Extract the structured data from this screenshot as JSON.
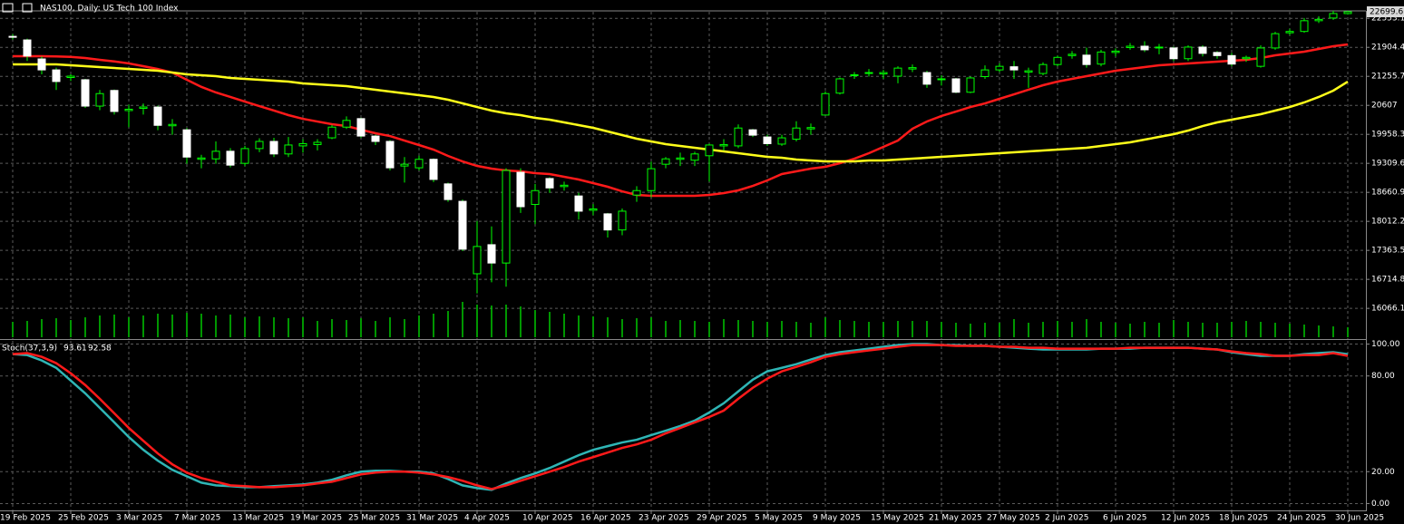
{
  "chart_data": [
    {
      "type": "candlestick",
      "title": "NAS100, Daily:  US Tech 100 Index",
      "categories": [
        "19 Feb 2025",
        null,
        null,
        null,
        "25 Feb 2025",
        null,
        null,
        null,
        "3 Mar 2025",
        null,
        null,
        null,
        "7 Mar 2025",
        null,
        null,
        null,
        "13 Mar 2025",
        null,
        null,
        null,
        "19 Mar 2025",
        null,
        null,
        null,
        "25 Mar 2025",
        null,
        null,
        null,
        "31 Mar 2025",
        null,
        null,
        null,
        "4 Apr 2025",
        null,
        null,
        null,
        "10 Apr 2025",
        null,
        null,
        null,
        "16 Apr 2025",
        null,
        null,
        null,
        "23 Apr 2025",
        null,
        null,
        null,
        "29 Apr 2025",
        null,
        null,
        null,
        "5 May 2025",
        null,
        null,
        null,
        "9 May 2025",
        null,
        null,
        null,
        "15 May 2025",
        null,
        null,
        null,
        "21 May 2025",
        null,
        null,
        null,
        "27 May 2025",
        null,
        null,
        null,
        "2 Jun 2025",
        null,
        null,
        null,
        "6 Jun 2025",
        null,
        null,
        null,
        "12 Jun 2025",
        null,
        null,
        null,
        "18 Jun 2025",
        null,
        null,
        null,
        "24 Jun 2025",
        null,
        null,
        null,
        "30 Jun 2025"
      ],
      "open": [
        22150,
        22070,
        21645,
        21400,
        21230,
        21180,
        20590,
        20940,
        20490,
        20540,
        20570,
        20150,
        20060,
        19400,
        19410,
        19580,
        19310,
        19640,
        19800,
        19520,
        19700,
        19730,
        19880,
        20120,
        20310,
        19920,
        19800,
        19250,
        19210,
        19400,
        18850,
        18460,
        16840,
        17490,
        17080,
        19110,
        18390,
        18970,
        18790,
        18580,
        18260,
        18180,
        17820,
        18600,
        18700,
        19290,
        19400,
        19380,
        19480,
        19700,
        19700,
        20060,
        19900,
        19740,
        19850,
        20080,
        20390,
        20880,
        21270,
        21320,
        21310,
        21260,
        21420,
        21340,
        21180,
        21200,
        20900,
        21250,
        21400,
        21470,
        21350,
        21320,
        21520,
        21720,
        21730,
        21530,
        21790,
        21900,
        21930,
        21890,
        21890,
        21650,
        21910,
        21790,
        21720,
        21650,
        21480,
        21890,
        22230,
        22260,
        22500,
        22560,
        22660
      ],
      "high": [
        22200,
        22100,
        21700,
        21450,
        21300,
        21200,
        20950,
        20960,
        20620,
        20650,
        20600,
        20300,
        20100,
        19500,
        19800,
        19650,
        19700,
        19870,
        19880,
        19900,
        19850,
        19850,
        20170,
        20360,
        20330,
        19950,
        19830,
        19450,
        19480,
        19420,
        18880,
        18500,
        18020,
        17900,
        19200,
        19200,
        18850,
        19000,
        18900,
        18650,
        18400,
        18200,
        18300,
        18800,
        19350,
        19450,
        19550,
        19570,
        19750,
        19850,
        20180,
        20080,
        19950,
        19950,
        20250,
        20200,
        20920,
        21230,
        21350,
        21420,
        21400,
        21480,
        21520,
        21380,
        21280,
        21220,
        21250,
        21500,
        21550,
        21600,
        21450,
        21570,
        21720,
        21820,
        21900,
        21850,
        21880,
        22000,
        22040,
        21980,
        21920,
        21950,
        21950,
        21820,
        21780,
        21720,
        21950,
        22250,
        22320,
        22560,
        22600,
        22720,
        22720
      ],
      "low": [
        22080,
        21600,
        21300,
        20950,
        21150,
        20550,
        20500,
        20400,
        20120,
        20400,
        20050,
        19950,
        19300,
        19200,
        19300,
        19220,
        19250,
        19560,
        19450,
        19450,
        19550,
        19600,
        19850,
        20080,
        19880,
        19720,
        19150,
        18880,
        19150,
        18890,
        18450,
        17350,
        16400,
        16650,
        16550,
        18200,
        17950,
        18650,
        18700,
        18050,
        18150,
        17650,
        17700,
        18450,
        18550,
        19200,
        19250,
        19250,
        18900,
        19600,
        19650,
        19900,
        19700,
        19700,
        19800,
        19950,
        20380,
        20850,
        21200,
        21250,
        21200,
        21100,
        21350,
        21000,
        21050,
        20880,
        20880,
        21200,
        21350,
        21200,
        21000,
        21280,
        21480,
        21650,
        21450,
        21480,
        21700,
        21850,
        21800,
        21750,
        21600,
        21600,
        21700,
        21650,
        21480,
        21580,
        21450,
        21850,
        22180,
        22230,
        22450,
        22520,
        22640
      ],
      "close": [
        22130,
        21710,
        21400,
        21140,
        21260,
        20590,
        20870,
        20470,
        20520,
        20570,
        20160,
        20180,
        19450,
        19430,
        19580,
        19270,
        19640,
        19800,
        19520,
        19720,
        19750,
        19780,
        20120,
        20270,
        19920,
        19800,
        19210,
        19290,
        19400,
        18950,
        18500,
        17390,
        17450,
        17080,
        19150,
        18340,
        18700,
        18760,
        18820,
        18240,
        18290,
        17820,
        18240,
        18700,
        19190,
        19410,
        19430,
        19520,
        19720,
        19730,
        20100,
        19940,
        19750,
        19880,
        20100,
        20110,
        20870,
        21200,
        21290,
        21340,
        21340,
        21440,
        21450,
        21080,
        21200,
        20900,
        21220,
        21400,
        21480,
        21400,
        21380,
        21520,
        21680,
        21750,
        21520,
        21800,
        21820,
        21930,
        21850,
        21910,
        21650,
        21910,
        21770,
        21720,
        21530,
        21680,
        21890,
        22210,
        22260,
        22500,
        22530,
        22660,
        22699.6
      ],
      "up_color": "#00ff00",
      "down_color": "#ffffff",
      "series": [
        {
          "color": "#ff1a1a",
          "values": [
            21706,
            21706,
            21706,
            21700,
            21690,
            21665,
            21625,
            21590,
            21545,
            21483,
            21420,
            21341,
            21180,
            21020,
            20895,
            20794,
            20692,
            20590,
            20490,
            20388,
            20306,
            20245,
            20185,
            20145,
            20063,
            19982,
            19921,
            19820,
            19719,
            19617,
            19475,
            19353,
            19252,
            19191,
            19150,
            19130,
            19090,
            19070,
            19009,
            18948,
            18867,
            18786,
            18684,
            18603,
            18583,
            18583,
            18583,
            18583,
            18603,
            18644,
            18705,
            18806,
            18928,
            19070,
            19130,
            19191,
            19232,
            19313,
            19414,
            19536,
            19678,
            19820,
            20084,
            20246,
            20368,
            20469,
            20570,
            20651,
            20753,
            20854,
            20956,
            21057,
            21138,
            21199,
            21260,
            21320,
            21381,
            21422,
            21463,
            21503,
            21523,
            21544,
            21564,
            21584,
            21605,
            21625,
            21666,
            21726,
            21767,
            21807,
            21868,
            21929,
            21970
          ]
        },
        {
          "color": "#ffff1a",
          "values": [
            21523,
            21523,
            21523,
            21523,
            21503,
            21483,
            21462,
            21442,
            21422,
            21402,
            21381,
            21341,
            21300,
            21280,
            21260,
            21219,
            21199,
            21179,
            21158,
            21138,
            21098,
            21077,
            21057,
            21037,
            20996,
            20956,
            20915,
            20875,
            20834,
            20794,
            20733,
            20652,
            20570,
            20489,
            20428,
            20388,
            20327,
            20287,
            20226,
            20165,
            20104,
            20023,
            19942,
            19861,
            19800,
            19739,
            19698,
            19658,
            19617,
            19577,
            19536,
            19496,
            19455,
            19435,
            19394,
            19374,
            19354,
            19354,
            19354,
            19374,
            19374,
            19394,
            19414,
            19435,
            19455,
            19475,
            19496,
            19516,
            19536,
            19556,
            19577,
            19597,
            19617,
            19637,
            19658,
            19698,
            19739,
            19779,
            19840,
            19901,
            19962,
            20043,
            20144,
            20226,
            20287,
            20347,
            20408,
            20489,
            20570,
            20672,
            20794,
            20936,
            21138
          ]
        }
      ],
      "volume": {
        "color": "#00c800",
        "values": [
          17,
          18,
          20,
          21,
          19,
          22,
          24,
          25,
          22,
          24,
          26,
          25,
          27,
          26,
          24,
          25,
          22,
          23,
          22,
          21,
          22,
          18,
          20,
          19,
          21,
          18,
          22,
          20,
          24,
          26,
          29,
          39,
          36,
          35,
          36,
          34,
          30,
          28,
          26,
          24,
          23,
          22,
          20,
          21,
          22,
          18,
          19,
          18,
          17,
          20,
          19,
          18,
          17,
          18,
          17,
          16,
          22,
          19,
          18,
          17,
          17,
          18,
          18,
          18,
          17,
          16,
          15,
          16,
          16,
          20,
          16,
          17,
          18,
          17,
          20,
          17,
          16,
          15,
          17,
          16,
          19,
          17,
          16,
          16,
          17,
          18,
          17,
          16,
          15,
          14,
          13,
          12,
          11
        ]
      },
      "volume_lim": [
        0,
        360
      ],
      "ylim": [
        15420,
        22720
      ],
      "yticks": [
        22553.1,
        21904.4,
        21255.7,
        20607.0,
        19958.3,
        19309.6,
        18660.9,
        18012.2,
        17363.5,
        16714.8,
        16066.1
      ],
      "grid": true
    },
    {
      "type": "line",
      "title": "Stoch(37,3,9)",
      "series": [
        {
          "color": "#2fb5b5",
          "values": [
            93.7,
            93.1,
            89.7,
            85.1,
            77.1,
            69.1,
            60.0,
            50.9,
            41.7,
            33.7,
            26.9,
            21.1,
            17.1,
            13.1,
            11.4,
            10.9,
            10.3,
            10.3,
            10.9,
            11.4,
            12.0,
            13.1,
            14.9,
            17.7,
            20.0,
            20.6,
            20.6,
            20.0,
            20.0,
            18.9,
            15.4,
            11.4,
            9.7,
            8.6,
            12.6,
            16.0,
            18.9,
            22.3,
            26.3,
            30.3,
            33.7,
            36.0,
            38.3,
            40.0,
            42.9,
            45.7,
            48.6,
            52.0,
            57.1,
            62.9,
            70.3,
            77.7,
            82.9,
            85.1,
            87.4,
            90.3,
            93.1,
            94.9,
            96.0,
            97.1,
            98.3,
            99.4,
            100.0,
            100.0,
            99.4,
            99.4,
            98.9,
            98.9,
            98.3,
            97.7,
            97.1,
            96.6,
            96.6,
            96.6,
            96.6,
            97.1,
            97.1,
            97.1,
            97.7,
            97.7,
            97.7,
            97.7,
            97.1,
            96.6,
            94.9,
            93.7,
            92.6,
            92.6,
            92.6,
            93.7,
            94.3,
            94.9,
            93.61
          ]
        },
        {
          "color": "#ff1a1a",
          "values": [
            93.7,
            94.3,
            92.0,
            88.0,
            81.7,
            74.3,
            65.7,
            56.6,
            47.4,
            39.4,
            31.4,
            24.6,
            19.4,
            16.0,
            13.7,
            11.4,
            10.9,
            10.3,
            10.3,
            10.9,
            11.4,
            12.6,
            13.7,
            16.0,
            18.3,
            19.4,
            20.0,
            20.0,
            19.4,
            18.3,
            16.6,
            14.3,
            11.4,
            9.1,
            11.4,
            14.3,
            17.1,
            20.0,
            22.9,
            26.3,
            29.1,
            32.0,
            34.9,
            37.1,
            40.0,
            44.0,
            47.4,
            50.9,
            54.3,
            58.3,
            65.7,
            72.6,
            78.3,
            82.9,
            85.7,
            88.6,
            92.0,
            93.7,
            94.9,
            96.0,
            97.1,
            98.3,
            99.4,
            99.4,
            99.4,
            98.9,
            98.9,
            98.9,
            98.3,
            98.3,
            97.7,
            97.7,
            97.1,
            97.1,
            97.1,
            97.1,
            97.1,
            97.7,
            97.7,
            97.7,
            97.7,
            97.7,
            97.1,
            96.6,
            95.4,
            94.3,
            93.7,
            92.6,
            92.6,
            93.1,
            93.1,
            94.3,
            92.58
          ]
        }
      ],
      "ylim": [
        -6,
        102
      ],
      "yticks": [
        {
          "value": 100,
          "label": "100.00"
        },
        {
          "value": 80,
          "label": "80.00"
        },
        {
          "value": 20,
          "label": "20.00"
        },
        {
          "value": 0,
          "label": "0.00"
        }
      ],
      "grid": true
    }
  ]
}
